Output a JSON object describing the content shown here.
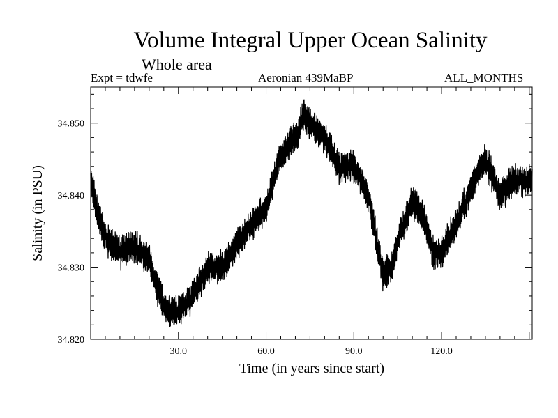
{
  "chart_data": {
    "type": "line",
    "title": "Volume Integral Upper Ocean Salinity",
    "subtitle": "Whole area",
    "expt_label": "Expt = tdwfe",
    "period_label": "Aeronian 439MaBP",
    "months_label": "ALL_MONTHS",
    "xlabel": "Time (in years since start)",
    "ylabel": "Salinity (in PSU)",
    "xlim": [
      0,
      151
    ],
    "ylim": [
      34.82,
      34.855
    ],
    "xticks": [
      30,
      60,
      90,
      120
    ],
    "xtick_labels": [
      "30.0",
      "60.0",
      "90.0",
      "120.0"
    ],
    "yticks": [
      34.82,
      34.83,
      34.84,
      34.85
    ],
    "ytick_labels": [
      "34.820",
      "34.830",
      "34.840",
      "34.850"
    ],
    "series": [
      {
        "name": "Salinity",
        "color": "#000000",
        "x": [
          0,
          2,
          5,
          10,
          15,
          20,
          23,
          26,
          30,
          35,
          40,
          45,
          50,
          55,
          60,
          63,
          66,
          70,
          73,
          75,
          80,
          85,
          90,
          95,
          98,
          100,
          103,
          106,
          110,
          114,
          117,
          120,
          125,
          130,
          135,
          140,
          145,
          150
        ],
        "values": [
          34.842,
          34.838,
          34.834,
          34.832,
          34.833,
          34.831,
          34.827,
          34.824,
          34.824,
          34.826,
          34.83,
          34.83,
          34.833,
          34.836,
          34.838,
          34.843,
          34.846,
          34.848,
          34.851,
          34.85,
          34.848,
          34.844,
          34.844,
          34.84,
          34.833,
          34.829,
          34.83,
          34.835,
          34.839,
          34.837,
          34.832,
          34.832,
          34.836,
          34.841,
          34.845,
          34.84,
          34.842,
          34.842
        ]
      }
    ]
  }
}
